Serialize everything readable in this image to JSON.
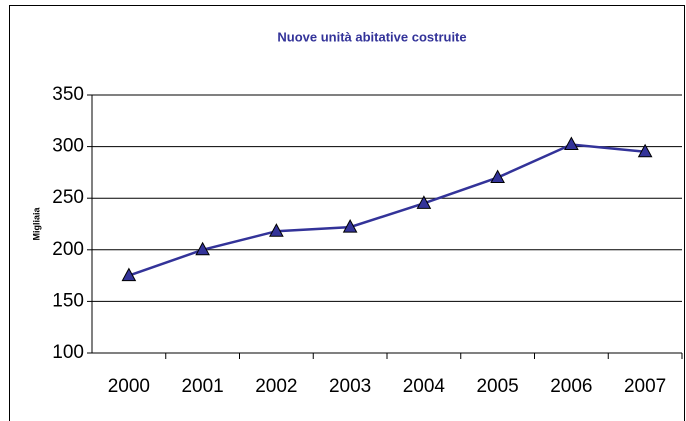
{
  "chart_data": {
    "type": "line",
    "title": "Nuove unità abitative costruite",
    "y_label": "Migliaia",
    "categories": [
      "2000",
      "2001",
      "2002",
      "2003",
      "2004",
      "2005",
      "2006",
      "2007"
    ],
    "series": [
      {
        "color": "#333399",
        "values": [
          175,
          200,
          218,
          222,
          245,
          270,
          302,
          295
        ]
      }
    ],
    "ylim": [
      100,
      350
    ],
    "yticks": [
      100,
      150,
      200,
      250,
      300,
      350
    ],
    "grid": true
  }
}
